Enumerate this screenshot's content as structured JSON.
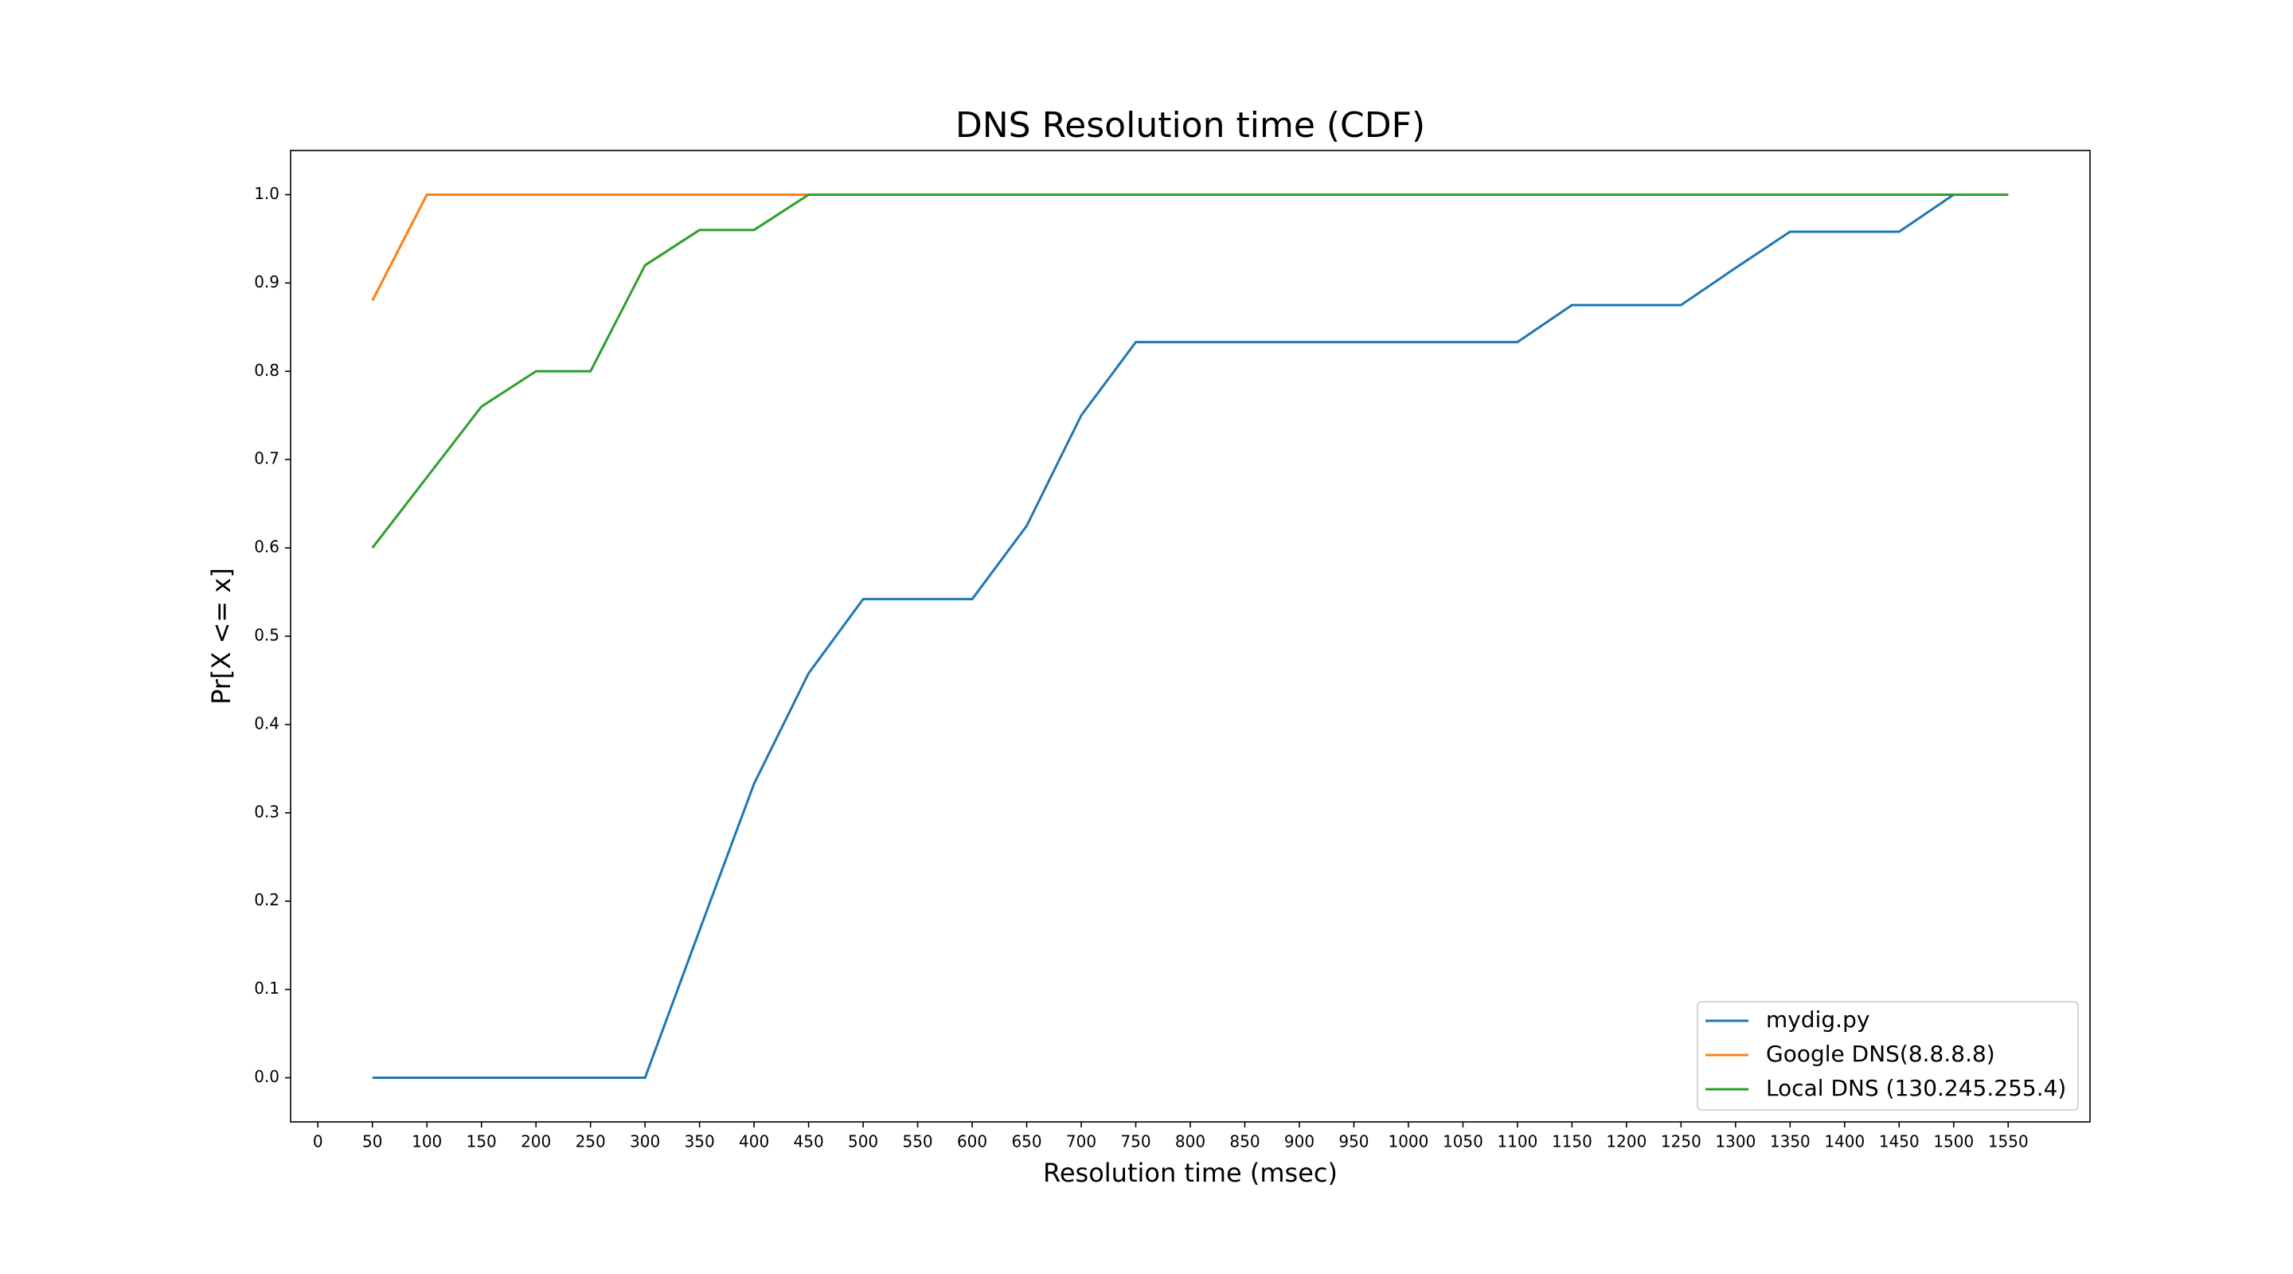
{
  "chart_data": {
    "type": "line",
    "title": "DNS Resolution time (CDF)",
    "xlabel": "Resolution time (msec)",
    "ylabel": "Pr[X <= x]",
    "x": [
      50,
      100,
      150,
      200,
      250,
      300,
      350,
      400,
      450,
      500,
      550,
      600,
      650,
      700,
      750,
      800,
      850,
      900,
      950,
      1000,
      1050,
      1100,
      1150,
      1200,
      1250,
      1300,
      1350,
      1400,
      1450,
      1500,
      1550
    ],
    "series": [
      {
        "name": "mydig.py",
        "color": "#1f77b4",
        "values": [
          0,
          0,
          0,
          0,
          0,
          0,
          0.167,
          0.333,
          0.458,
          0.542,
          0.542,
          0.542,
          0.625,
          0.75,
          0.833,
          0.833,
          0.833,
          0.833,
          0.833,
          0.833,
          0.833,
          0.833,
          0.875,
          0.875,
          0.875,
          0.917,
          0.958,
          0.958,
          0.958,
          1.0,
          1.0
        ]
      },
      {
        "name": "Google DNS(8.8.8.8)",
        "color": "#ff7f0e",
        "values": [
          0.88,
          1,
          1,
          1,
          1,
          1,
          1,
          1,
          1,
          1,
          1,
          1,
          1,
          1,
          1,
          1,
          1,
          1,
          1,
          1,
          1,
          1,
          1,
          1,
          1,
          1,
          1,
          1,
          1,
          1,
          1
        ]
      },
      {
        "name": "Local DNS (130.245.255.4)",
        "color": "#2ca02c",
        "values": [
          0.6,
          0.68,
          0.76,
          0.8,
          0.8,
          0.92,
          0.96,
          0.96,
          1,
          1,
          1,
          1,
          1,
          1,
          1,
          1,
          1,
          1,
          1,
          1,
          1,
          1,
          1,
          1,
          1,
          1,
          1,
          1,
          1,
          1,
          1
        ]
      }
    ],
    "xlim": [
      -25,
      1625
    ],
    "xticks": [
      0,
      50,
      100,
      150,
      200,
      250,
      300,
      350,
      400,
      450,
      500,
      550,
      600,
      650,
      700,
      750,
      800,
      850,
      900,
      950,
      1000,
      1050,
      1100,
      1150,
      1200,
      1250,
      1300,
      1350,
      1400,
      1450,
      1500,
      1550
    ],
    "ylim": [
      -0.05,
      1.05
    ],
    "yticks": [
      {
        "value": 0,
        "label": "0.0"
      },
      0.1,
      0.2,
      0.3,
      0.4,
      0.5,
      0.6,
      0.7,
      0.8,
      0.9,
      {
        "value": 1,
        "label": "1.0"
      }
    ],
    "grid": false,
    "legend": "lower right"
  }
}
